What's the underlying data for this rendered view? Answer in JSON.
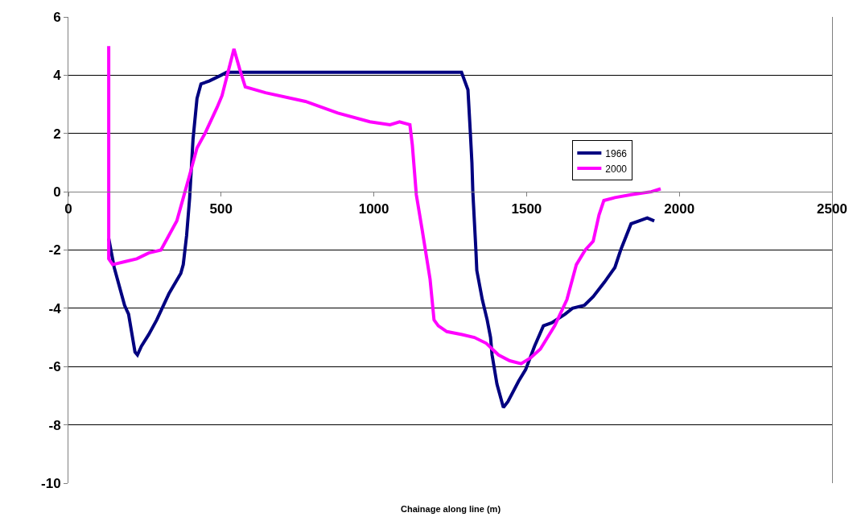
{
  "chart_data": {
    "type": "line",
    "xlabel": "Chainage along line (m)",
    "xlim": [
      0,
      2500
    ],
    "xticks": [
      0,
      500,
      1000,
      1500,
      2000,
      2500
    ],
    "ylim": [
      -10,
      6
    ],
    "yticks": [
      -10,
      -8,
      -6,
      -4,
      -2,
      0,
      2,
      4,
      6
    ],
    "grid": "y",
    "legend": "right",
    "marker": "none",
    "line_style": "solid",
    "series": [
      {
        "name": "1966",
        "color": "#000080",
        "x": [
          132,
          150,
          184,
          197,
          218,
          226,
          239,
          263,
          289,
          329,
          368,
          376,
          387,
          397,
          408,
          421,
          434,
          461,
          500,
          518,
          1287,
          1308,
          1316,
          1321,
          1324,
          1334,
          1337,
          1355,
          1371,
          1382,
          1387,
          1403,
          1424,
          1439,
          1474,
          1497,
          1526,
          1555,
          1582,
          1626,
          1650,
          1689,
          1718,
          1755,
          1789,
          1808,
          1842,
          1868,
          1895,
          1918
        ],
        "values": [
          -1.6,
          -2.6,
          -3.9,
          -4.2,
          -5.5,
          -5.6,
          -5.3,
          -4.9,
          -4.4,
          -3.5,
          -2.8,
          -2.5,
          -1.5,
          -0.2,
          1.8,
          3.2,
          3.7,
          3.8,
          4.0,
          4.1,
          4.1,
          3.5,
          2.0,
          1.0,
          0.0,
          -2.0,
          -2.7,
          -3.7,
          -4.4,
          -5.0,
          -5.6,
          -6.6,
          -7.4,
          -7.2,
          -6.5,
          -6.1,
          -5.3,
          -4.6,
          -4.5,
          -4.2,
          -4.0,
          -3.9,
          -3.6,
          -3.1,
          -2.6,
          -2.0,
          -1.1,
          -1.0,
          -0.9,
          -1.0
        ]
      },
      {
        "name": "2000",
        "color": "#ff00ff",
        "x": [
          132,
          132,
          145,
          184,
          224,
          263,
          303,
          355,
          395,
          421,
          447,
          487,
          503,
          542,
          561,
          579,
          645,
          776,
          882,
          987,
          1053,
          1084,
          1118,
          1126,
          1139,
          1158,
          1184,
          1197,
          1211,
          1239,
          1289,
          1329,
          1368,
          1408,
          1445,
          1482,
          1513,
          1545,
          1592,
          1632,
          1663,
          1692,
          1718,
          1737,
          1753,
          1789,
          1842,
          1908,
          1939
        ],
        "values": [
          5.0,
          -2.3,
          -2.5,
          -2.4,
          -2.3,
          -2.1,
          -2.0,
          -1.0,
          0.5,
          1.5,
          2.0,
          2.9,
          3.3,
          4.9,
          4.2,
          3.6,
          3.4,
          3.1,
          2.7,
          2.4,
          2.3,
          2.4,
          2.3,
          1.6,
          -0.1,
          -1.3,
          -3.0,
          -4.4,
          -4.6,
          -4.8,
          -4.9,
          -5.0,
          -5.2,
          -5.6,
          -5.8,
          -5.9,
          -5.7,
          -5.4,
          -4.6,
          -3.7,
          -2.5,
          -2.0,
          -1.7,
          -0.8,
          -0.3,
          -0.2,
          -0.1,
          0.0,
          0.1
        ]
      }
    ]
  }
}
